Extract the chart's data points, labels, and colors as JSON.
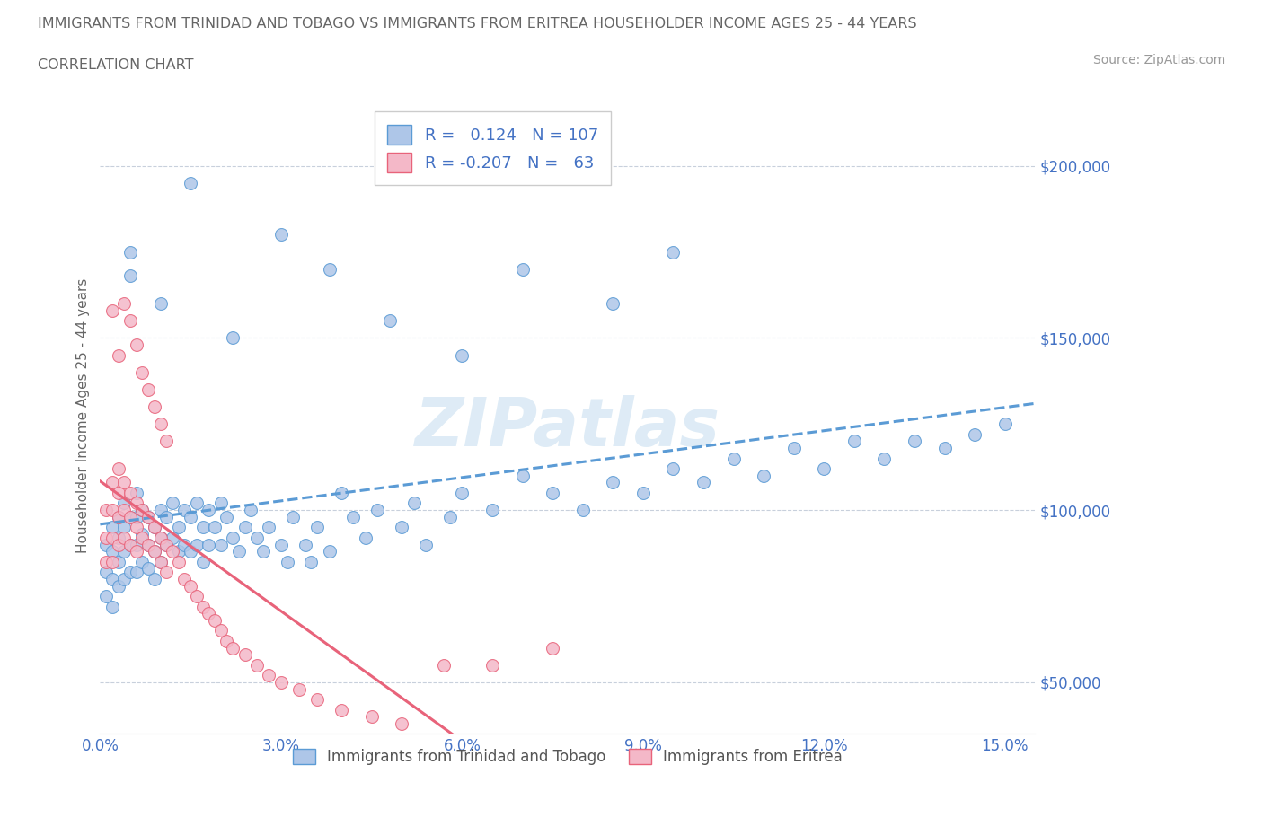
{
  "title_line1": "IMMIGRANTS FROM TRINIDAD AND TOBAGO VS IMMIGRANTS FROM ERITREA HOUSEHOLDER INCOME AGES 25 - 44 YEARS",
  "title_line2": "CORRELATION CHART",
  "source_text": "Source: ZipAtlas.com",
  "ylabel": "Householder Income Ages 25 - 44 years",
  "xlim": [
    0.0,
    0.155
  ],
  "ylim": [
    35000,
    220000
  ],
  "yticks": [
    50000,
    100000,
    150000,
    200000
  ],
  "ytick_labels": [
    "$50,000",
    "$100,000",
    "$150,000",
    "$200,000"
  ],
  "xticks": [
    0.0,
    0.03,
    0.06,
    0.09,
    0.12,
    0.15
  ],
  "xtick_labels": [
    "0.0%",
    "3.0%",
    "6.0%",
    "9.0%",
    "12.0%",
    "15.0%"
  ],
  "legend_r1": "R =   0.124",
  "legend_n1": "N = 107",
  "legend_r2": "R = -0.207",
  "legend_n2": "N =   63",
  "series1_label": "Immigrants from Trinidad and Tobago",
  "series2_label": "Immigrants from Eritrea",
  "color1_fill": "#aec6e8",
  "color1_edge": "#5b9bd5",
  "color2_fill": "#f4b8c8",
  "color2_edge": "#e8637a",
  "color1_line": "#5b9bd5",
  "color2_line": "#e8637a",
  "legend_text_color": "#4472c4",
  "axis_tick_color": "#4472c4",
  "grid_color": "#c8d0dc",
  "title_color": "#666666",
  "source_color": "#999999",
  "background_color": "#ffffff",
  "watermark_color": "#c8dff0",
  "tt_x": [
    0.001,
    0.001,
    0.001,
    0.002,
    0.002,
    0.002,
    0.002,
    0.003,
    0.003,
    0.003,
    0.003,
    0.004,
    0.004,
    0.004,
    0.004,
    0.005,
    0.005,
    0.005,
    0.006,
    0.006,
    0.006,
    0.006,
    0.007,
    0.007,
    0.007,
    0.008,
    0.008,
    0.008,
    0.009,
    0.009,
    0.009,
    0.01,
    0.01,
    0.01,
    0.011,
    0.011,
    0.012,
    0.012,
    0.013,
    0.013,
    0.014,
    0.014,
    0.015,
    0.015,
    0.016,
    0.016,
    0.017,
    0.017,
    0.018,
    0.018,
    0.019,
    0.02,
    0.02,
    0.021,
    0.022,
    0.023,
    0.024,
    0.025,
    0.026,
    0.027,
    0.028,
    0.03,
    0.031,
    0.032,
    0.034,
    0.035,
    0.036,
    0.038,
    0.04,
    0.042,
    0.044,
    0.046,
    0.05,
    0.052,
    0.054,
    0.058,
    0.06,
    0.065,
    0.07,
    0.075,
    0.08,
    0.085,
    0.09,
    0.095,
    0.1,
    0.105,
    0.11,
    0.115,
    0.12,
    0.125,
    0.13,
    0.135,
    0.14,
    0.145,
    0.15,
    0.005,
    0.022,
    0.03,
    0.038,
    0.048,
    0.06,
    0.07,
    0.085,
    0.095,
    0.005,
    0.01,
    0.015
  ],
  "tt_y": [
    90000,
    82000,
    75000,
    95000,
    88000,
    80000,
    72000,
    98000,
    92000,
    85000,
    78000,
    102000,
    95000,
    88000,
    80000,
    98000,
    90000,
    82000,
    105000,
    98000,
    90000,
    82000,
    100000,
    93000,
    85000,
    98000,
    90000,
    83000,
    95000,
    88000,
    80000,
    100000,
    92000,
    85000,
    98000,
    90000,
    102000,
    92000,
    95000,
    88000,
    100000,
    90000,
    98000,
    88000,
    102000,
    90000,
    95000,
    85000,
    100000,
    90000,
    95000,
    102000,
    90000,
    98000,
    92000,
    88000,
    95000,
    100000,
    92000,
    88000,
    95000,
    90000,
    85000,
    98000,
    90000,
    85000,
    95000,
    88000,
    105000,
    98000,
    92000,
    100000,
    95000,
    102000,
    90000,
    98000,
    105000,
    100000,
    110000,
    105000,
    100000,
    108000,
    105000,
    112000,
    108000,
    115000,
    110000,
    118000,
    112000,
    120000,
    115000,
    120000,
    118000,
    122000,
    125000,
    168000,
    150000,
    180000,
    170000,
    155000,
    145000,
    170000,
    160000,
    175000,
    175000,
    160000,
    195000
  ],
  "er_x": [
    0.001,
    0.001,
    0.001,
    0.002,
    0.002,
    0.002,
    0.002,
    0.003,
    0.003,
    0.003,
    0.003,
    0.004,
    0.004,
    0.004,
    0.005,
    0.005,
    0.005,
    0.006,
    0.006,
    0.006,
    0.007,
    0.007,
    0.008,
    0.008,
    0.009,
    0.009,
    0.01,
    0.01,
    0.011,
    0.011,
    0.012,
    0.013,
    0.014,
    0.015,
    0.016,
    0.017,
    0.018,
    0.019,
    0.02,
    0.021,
    0.022,
    0.024,
    0.026,
    0.028,
    0.03,
    0.033,
    0.036,
    0.04,
    0.045,
    0.05,
    0.057,
    0.065,
    0.075,
    0.002,
    0.003,
    0.004,
    0.005,
    0.006,
    0.007,
    0.008,
    0.009,
    0.01,
    0.011
  ],
  "er_y": [
    100000,
    92000,
    85000,
    108000,
    100000,
    92000,
    85000,
    112000,
    105000,
    98000,
    90000,
    108000,
    100000,
    92000,
    105000,
    98000,
    90000,
    102000,
    95000,
    88000,
    100000,
    92000,
    98000,
    90000,
    95000,
    88000,
    92000,
    85000,
    90000,
    82000,
    88000,
    85000,
    80000,
    78000,
    75000,
    72000,
    70000,
    68000,
    65000,
    62000,
    60000,
    58000,
    55000,
    52000,
    50000,
    48000,
    45000,
    42000,
    40000,
    38000,
    55000,
    55000,
    60000,
    158000,
    145000,
    160000,
    155000,
    148000,
    140000,
    135000,
    130000,
    125000,
    120000
  ]
}
